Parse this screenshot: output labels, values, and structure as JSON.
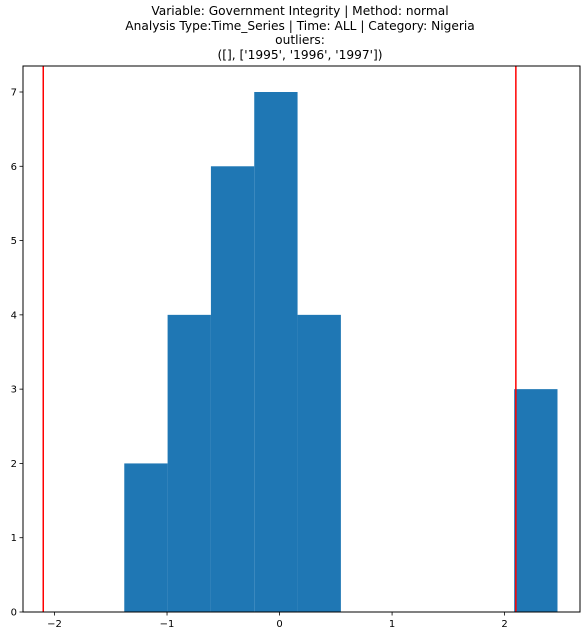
{
  "chart_data": {
    "type": "bar",
    "title_lines": [
      "Variable: Government Integrity | Method: normal",
      "Analysis Type:Time_Series | Time: ALL | Category: Nigeria",
      "outliers:",
      "([], ['1995', '1996', '1997'])"
    ],
    "xlabel": "",
    "ylabel": "",
    "xlim": [
      -2.28,
      2.67
    ],
    "ylim": [
      0,
      7.35
    ],
    "xticks": [
      -2,
      -1,
      0,
      1,
      2
    ],
    "yticks": [
      0,
      1,
      2,
      3,
      4,
      5,
      6,
      7
    ],
    "bins": [
      {
        "x0": -1.38,
        "x1": -0.995,
        "count": 2
      },
      {
        "x0": -0.995,
        "x1": -0.61,
        "count": 4
      },
      {
        "x0": -0.61,
        "x1": -0.225,
        "count": 6
      },
      {
        "x0": -0.225,
        "x1": 0.16,
        "count": 7
      },
      {
        "x0": 0.16,
        "x1": 0.545,
        "count": 4
      },
      {
        "x0": 0.545,
        "x1": 0.93,
        "count": 0
      },
      {
        "x0": 0.93,
        "x1": 1.315,
        "count": 0
      },
      {
        "x0": 1.315,
        "x1": 1.7,
        "count": 0
      },
      {
        "x0": 1.7,
        "x1": 2.085,
        "count": 0
      },
      {
        "x0": 2.085,
        "x1": 2.47,
        "count": 3
      }
    ],
    "threshold_lines": [
      -2.1,
      2.1
    ],
    "colors": {
      "bars": "#1f77b4",
      "threshold": "#ff0000"
    },
    "grid": false,
    "legend": "none"
  }
}
